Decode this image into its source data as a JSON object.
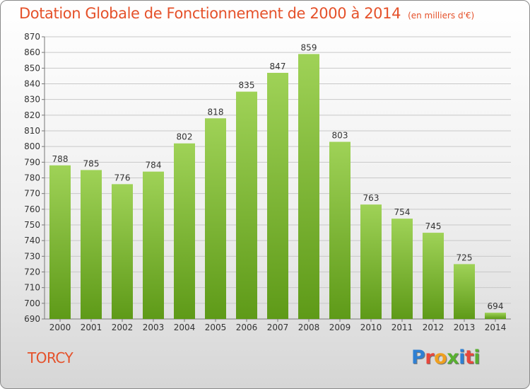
{
  "title": "Dotation Globale de Fonctionnement de 2000 à 2014",
  "subtitle": "(en milliers d'€)",
  "place": "TORCY",
  "logo": {
    "text": "Proxiti",
    "colors": [
      "#2f80d3",
      "#e8473c",
      "#f0a020",
      "#58b030",
      "#2f80d3",
      "#e8473c",
      "#58b030"
    ]
  },
  "colors": {
    "accent": "#e5512a",
    "bar_top": "#9fd257",
    "bar_bottom": "#5e9a18"
  },
  "chart_data": {
    "type": "bar",
    "categories": [
      "2000",
      "2001",
      "2002",
      "2003",
      "2004",
      "2005",
      "2006",
      "2007",
      "2008",
      "2009",
      "2010",
      "2011",
      "2012",
      "2013",
      "2014"
    ],
    "values": [
      788,
      785,
      776,
      784,
      802,
      818,
      835,
      847,
      859,
      803,
      763,
      754,
      745,
      725,
      694
    ],
    "ylim": [
      690,
      870
    ],
    "yticks": [
      690,
      700,
      710,
      720,
      730,
      740,
      750,
      760,
      770,
      780,
      790,
      800,
      810,
      820,
      830,
      840,
      850,
      860,
      870
    ],
    "grid": true
  }
}
